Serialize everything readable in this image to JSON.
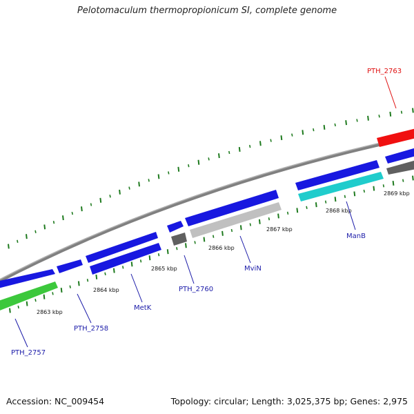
{
  "title": "Pelotomaculum thermopropionicum SI, complete genome",
  "footer": {
    "accession": "Accession: NC_009454",
    "summary": "Topology: circular; Length: 3,025,375 bp; Genes: 2,975"
  },
  "colors": {
    "backbone": "#8a8a8a",
    "tick_marks": "#1e7a1e",
    "label_default": "#1a1aa8",
    "label_highlight": "#e01010",
    "gene_blue": "#1818e0",
    "gene_gray": "#c0c0c0",
    "gene_darkgray": "#606060",
    "gene_green": "#3cc83c",
    "gene_cyan": "#20cccc",
    "gene_red": "#f01010"
  },
  "scale_labels": [
    "2863 kbp",
    "2864 kbp",
    "2865 kbp",
    "2866 kbp",
    "2867 kbp",
    "2868 kbp",
    "2869 kbp"
  ],
  "gene_labels": [
    {
      "id": "pth2757",
      "text": "PTH_2757",
      "color": "label_default"
    },
    {
      "id": "pth2758",
      "text": "PTH_2758",
      "color": "label_default"
    },
    {
      "id": "metk",
      "text": "MetK",
      "color": "label_default"
    },
    {
      "id": "pth2760",
      "text": "PTH_2760",
      "color": "label_default"
    },
    {
      "id": "mvin",
      "text": "MviN",
      "color": "label_default"
    },
    {
      "id": "manb",
      "text": "ManB",
      "color": "label_default"
    },
    {
      "id": "pth2763",
      "text": "PTH_2763",
      "color": "label_highlight"
    }
  ]
}
